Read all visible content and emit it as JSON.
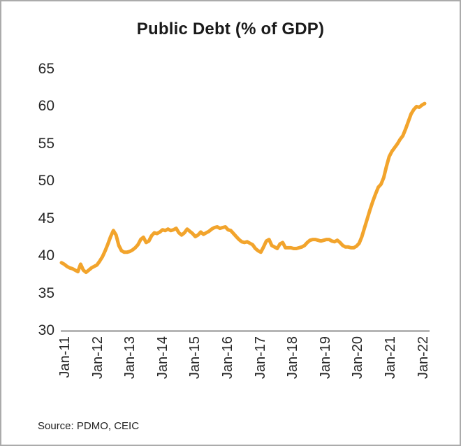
{
  "page": {
    "title": "Public Debt (% of GDP)",
    "source": "Source: PDMO, CEIC"
  },
  "colors": {
    "line": "#F2A42C",
    "axis": "#8C8C8C",
    "text": "#262626"
  },
  "chart_data": {
    "type": "line",
    "title": "Public Debt (% of GDP)",
    "xlabel": "",
    "ylabel": "% of GDP",
    "ylim": [
      30,
      65
    ],
    "y_ticks": [
      65,
      60,
      55,
      50,
      45,
      40,
      35,
      30
    ],
    "x_tick_labels": [
      "Jan-11",
      "Jan-12",
      "Jan-13",
      "Jan-14",
      "Jan-15",
      "Jan-16",
      "Jan-17",
      "Jan-18",
      "Jan-19",
      "Jan-20",
      "Jan-21",
      "Jan-22"
    ],
    "grid": false,
    "legend": false,
    "x_start": "Jan-11",
    "x_end": "Feb-22",
    "frequency": "monthly",
    "series": [
      {
        "name": "Public Debt (% of GDP)",
        "values": [
          39.1,
          38.9,
          38.6,
          38.4,
          38.3,
          38.1,
          37.9,
          38.9,
          38.1,
          37.8,
          38.1,
          38.4,
          38.6,
          38.8,
          39.3,
          39.9,
          40.7,
          41.6,
          42.6,
          43.4,
          42.8,
          41.4,
          40.7,
          40.5,
          40.5,
          40.6,
          40.8,
          41.1,
          41.5,
          42.2,
          42.5,
          41.8,
          42.0,
          42.7,
          43.1,
          43.0,
          43.2,
          43.5,
          43.4,
          43.6,
          43.4,
          43.5,
          43.7,
          43.1,
          42.8,
          43.1,
          43.6,
          43.3,
          43.0,
          42.6,
          42.8,
          43.2,
          42.9,
          43.1,
          43.3,
          43.6,
          43.8,
          43.9,
          43.7,
          43.8,
          43.9,
          43.5,
          43.4,
          43.0,
          42.6,
          42.2,
          41.9,
          41.8,
          41.9,
          41.7,
          41.5,
          41.0,
          40.7,
          40.5,
          41.2,
          42.0,
          42.2,
          41.4,
          41.2,
          41.0,
          41.6,
          41.8,
          41.1,
          41.1,
          41.1,
          41.0,
          41.0,
          41.1,
          41.2,
          41.4,
          41.8,
          42.1,
          42.2,
          42.2,
          42.1,
          42.0,
          42.1,
          42.2,
          42.2,
          42.0,
          41.9,
          42.1,
          41.8,
          41.4,
          41.2,
          41.2,
          41.1,
          41.1,
          41.3,
          41.7,
          42.6,
          43.8,
          45.0,
          46.2,
          47.3,
          48.3,
          49.2,
          49.6,
          50.5,
          52.0,
          53.3,
          54.0,
          54.5,
          55.0,
          55.6,
          56.1,
          57.0,
          58.0,
          59.0,
          59.6,
          60.0,
          59.9,
          60.2,
          60.4
        ]
      }
    ]
  }
}
